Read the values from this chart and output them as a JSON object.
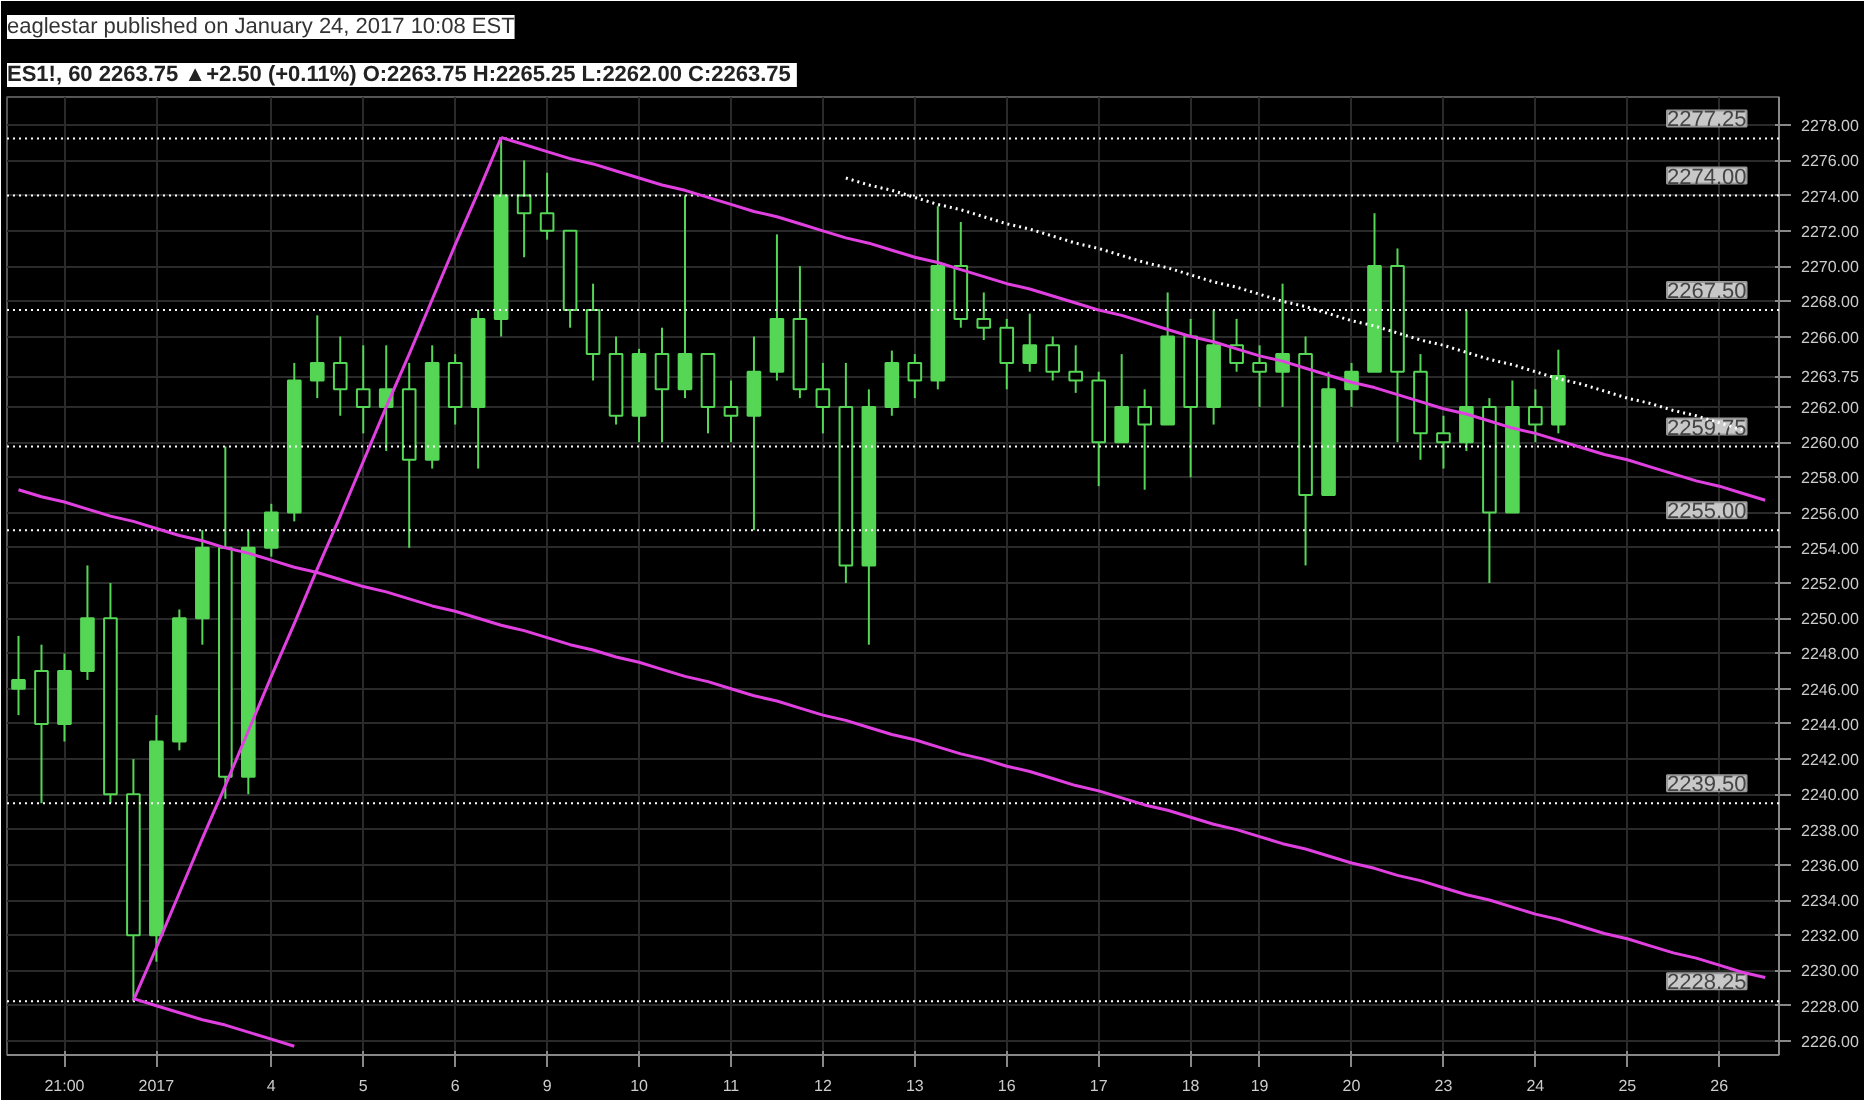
{
  "chart_data": {
    "type": "candlestick",
    "title": "eaglestar published on January 24, 2017 10:08 EST",
    "subtitle": "ES1!, 60  2263.75 ▲+2.50 (+0.11%) O:2263.75 H:2265.25 L:2262.00 C:2263.75",
    "color": "#55d655",
    "categories": [
      null,
      null,
      "21:00",
      null,
      null,
      null,
      "2017",
      null,
      null,
      null,
      null,
      "4",
      null,
      null,
      null,
      "5",
      null,
      null,
      null,
      "6",
      null,
      null,
      null,
      "9",
      null,
      null,
      null,
      "10",
      null,
      null,
      null,
      "11",
      null,
      null,
      null,
      "12",
      null,
      null,
      null,
      "13",
      null,
      null,
      null,
      "16",
      null,
      null,
      null,
      "17",
      null,
      null,
      null,
      "18",
      null,
      null,
      "19",
      null,
      null,
      null,
      "20",
      null,
      null,
      null,
      "23",
      null,
      null,
      null,
      "24",
      null,
      null,
      null,
      "25",
      null,
      null,
      null,
      "26",
      null,
      null
    ],
    "ohlc": [
      [
        2246,
        2249,
        2244.5,
        2246.5
      ],
      [
        2247,
        2248.5,
        2239.5,
        2244
      ],
      [
        2244,
        2248,
        2243,
        2247
      ],
      [
        2247,
        2253,
        2246.5,
        2250
      ],
      [
        2250,
        2252,
        2239.5,
        2240
      ],
      [
        2240,
        2242,
        2228.25,
        2232
      ],
      [
        2232,
        2244.5,
        2230.5,
        2243
      ],
      [
        2243,
        2250.5,
        2242.5,
        2250
      ],
      [
        2250,
        2255,
        2248.5,
        2254
      ],
      [
        2254,
        2259.75,
        2239.75,
        2241
      ],
      [
        2241,
        2255,
        2240,
        2254
      ],
      [
        2254,
        2256.5,
        2253.5,
        2256
      ],
      [
        2256,
        2264.5,
        2255.5,
        2263.5
      ],
      [
        2263.5,
        2267.2,
        2262.5,
        2264.5
      ],
      [
        2264.5,
        2266,
        2261.5,
        2263
      ],
      [
        2263,
        2265.5,
        2260.5,
        2262
      ],
      [
        2262,
        2265.5,
        2259.5,
        2263
      ],
      [
        2263,
        2264.5,
        2254,
        2259
      ],
      [
        2259,
        2265.5,
        2258.5,
        2264.5
      ],
      [
        2264.5,
        2265,
        2261,
        2262
      ],
      [
        2262,
        2267.5,
        2258.5,
        2267
      ],
      [
        2267,
        2277.25,
        2266,
        2274
      ],
      [
        2274,
        2276,
        2270.5,
        2273
      ],
      [
        2273,
        2275.3,
        2271.5,
        2272
      ],
      [
        2272,
        2272,
        2266.5,
        2267.5
      ],
      [
        2267.5,
        2269,
        2263.5,
        2265
      ],
      [
        2265,
        2266,
        2261,
        2261.5
      ],
      [
        2261.5,
        2265.3,
        2260,
        2265
      ],
      [
        2265,
        2266.5,
        2260,
        2263
      ],
      [
        2263,
        2274,
        2262.5,
        2265
      ],
      [
        2265,
        2265,
        2260.5,
        2262
      ],
      [
        2262,
        2263.5,
        2260,
        2261.5
      ],
      [
        2261.5,
        2266,
        2255,
        2264
      ],
      [
        2264,
        2271.8,
        2263.5,
        2267
      ],
      [
        2267,
        2270,
        2262.5,
        2263
      ],
      [
        2263,
        2264.5,
        2260.5,
        2262
      ],
      [
        2262,
        2264.5,
        2252,
        2253
      ],
      [
        2253,
        2263,
        2248.5,
        2262
      ],
      [
        2262,
        2265.2,
        2261.5,
        2264.5
      ],
      [
        2264.5,
        2265,
        2262.5,
        2263.5
      ],
      [
        2263.5,
        2273.4,
        2263,
        2270
      ],
      [
        2270,
        2272.5,
        2266.5,
        2267
      ],
      [
        2267,
        2268.5,
        2265.8,
        2266.5
      ],
      [
        2266.5,
        2267,
        2263,
        2264.5
      ],
      [
        2264.5,
        2267.3,
        2264,
        2265.5
      ],
      [
        2265.5,
        2266,
        2263.5,
        2264
      ],
      [
        2264,
        2265.5,
        2262.8,
        2263.5
      ],
      [
        2263.5,
        2264,
        2257.5,
        2260
      ],
      [
        2260,
        2265,
        2260,
        2262
      ],
      [
        2262,
        2263,
        2257.3,
        2261
      ],
      [
        2261,
        2268.5,
        2261,
        2266
      ],
      [
        2266,
        2267,
        2258,
        2262
      ],
      [
        2262,
        2267.5,
        2261,
        2265.5
      ],
      [
        2265.5,
        2267,
        2264,
        2264.5
      ],
      [
        2264.5,
        2265.5,
        2262,
        2264
      ],
      [
        2264,
        2269,
        2262,
        2265
      ],
      [
        2265,
        2266,
        2253,
        2257
      ],
      [
        2257,
        2264,
        2257,
        2263
      ],
      [
        2263,
        2264.5,
        2262,
        2264
      ],
      [
        2264,
        2273,
        2264,
        2270
      ],
      [
        2270,
        2271,
        2260,
        2264
      ],
      [
        2264,
        2265,
        2259,
        2260.5
      ],
      [
        2260.5,
        2261.5,
        2258.5,
        2260
      ],
      [
        2260,
        2267.5,
        2259.5,
        2262
      ],
      [
        2262,
        2262.5,
        2252,
        2256
      ],
      [
        2256,
        2263.5,
        2256,
        2262
      ],
      [
        2262,
        2263,
        2260,
        2261
      ],
      [
        2261,
        2265.25,
        2260.5,
        2263.75
      ],
      null,
      null,
      null,
      null,
      null,
      null,
      null,
      null,
      null
    ],
    "series": [
      {
        "type": "line",
        "color": "#e040e0",
        "values": [
          null,
          null,
          null,
          null,
          null,
          2228.3,
          2231.3,
          2234.4,
          2237.5,
          2240.5,
          2243.6,
          2246.7,
          2249.7,
          2252.8,
          2255.8,
          2258.9,
          2262.0,
          2265.0,
          2268.1,
          2271.2,
          2274.2,
          2277.3,
          null,
          null,
          null,
          null,
          null,
          null,
          null,
          null,
          null,
          null,
          null,
          null,
          null,
          null,
          null,
          null,
          null,
          null,
          null,
          null,
          null,
          null,
          null,
          null,
          null,
          null,
          null,
          null,
          null,
          null,
          null,
          null,
          null,
          null,
          null,
          null,
          null,
          null,
          null,
          null,
          null,
          null,
          null,
          null,
          null,
          null,
          null,
          null,
          null,
          null,
          null,
          null,
          null,
          null,
          null
        ]
      },
      {
        "type": "line",
        "color": "#e040e0",
        "values": [
          null,
          null,
          null,
          null,
          null,
          null,
          null,
          null,
          null,
          null,
          null,
          null,
          null,
          null,
          null,
          null,
          null,
          null,
          null,
          null,
          null,
          2277.3,
          2276.9,
          2276.5,
          2276.1,
          2275.8,
          2275.4,
          2275.0,
          2274.6,
          2274.3,
          2273.9,
          2273.5,
          2273.1,
          2272.8,
          2272.4,
          2272.0,
          2271.6,
          2271.3,
          2270.9,
          2270.5,
          2270.2,
          2269.8,
          2269.4,
          2269.0,
          2268.7,
          2268.3,
          2267.9,
          2267.5,
          2267.2,
          2266.8,
          2266.4,
          2266.0,
          2265.7,
          2265.3,
          2264.9,
          2264.6,
          2264.2,
          2263.8,
          2263.4,
          2263.1,
          2262.7,
          2262.3,
          2261.9,
          2261.6,
          2261.2,
          2260.8,
          2260.5,
          2260.1,
          2259.7,
          2259.3,
          2259.0,
          2258.6,
          2258.2,
          2257.8,
          2257.5,
          2257.1,
          2256.7
        ]
      },
      {
        "type": "line",
        "color": "#e040e0",
        "values": [
          2257.3,
          2256.9,
          2256.6,
          2256.2,
          2255.8,
          2255.5,
          2255.1,
          2254.7,
          2254.4,
          2254.0,
          2253.7,
          2253.3,
          2252.9,
          2252.6,
          2252.2,
          2251.8,
          2251.5,
          2251.1,
          2250.7,
          2250.4,
          2250.0,
          2249.6,
          2249.3,
          2248.9,
          2248.5,
          2248.2,
          2247.8,
          2247.5,
          2247.1,
          2246.7,
          2246.4,
          2246.0,
          2245.6,
          2245.3,
          2244.9,
          2244.5,
          2244.2,
          2243.8,
          2243.4,
          2243.1,
          2242.7,
          2242.3,
          2242.0,
          2241.6,
          2241.3,
          2240.9,
          2240.5,
          2240.2,
          2239.8,
          2239.4,
          2239.1,
          2238.7,
          2238.3,
          2238.0,
          2237.6,
          2237.2,
          2236.9,
          2236.5,
          2236.1,
          2235.8,
          2235.4,
          2235.1,
          2234.7,
          2234.3,
          2234.0,
          2233.6,
          2233.2,
          2232.9,
          2232.5,
          2232.1,
          2231.8,
          2231.4,
          2231.0,
          2230.7,
          2230.3,
          2229.9,
          2229.6
        ]
      },
      {
        "type": "line",
        "color": "#e040e0",
        "values": [
          null,
          null,
          null,
          null,
          null,
          2228.4,
          2228.0,
          2227.6,
          2227.2,
          2226.9,
          2226.5,
          2226.1,
          2225.7,
          null,
          null,
          null,
          null,
          null,
          null,
          null,
          null,
          null,
          null,
          null,
          null,
          null,
          null,
          null,
          null,
          null,
          null,
          null,
          null,
          null,
          null,
          null,
          null,
          null,
          null,
          null,
          null,
          null,
          null,
          null,
          null,
          null,
          null,
          null,
          null,
          null,
          null,
          null,
          null,
          null,
          null,
          null,
          null,
          null,
          null,
          null,
          null,
          null,
          null,
          null,
          null,
          null,
          null,
          null,
          null,
          null,
          null,
          null,
          null,
          null,
          null,
          null,
          null
        ]
      },
      {
        "type": "line",
        "color": "#ffffff",
        "line_style": "dotted",
        "values": [
          null,
          null,
          null,
          null,
          null,
          null,
          null,
          null,
          null,
          null,
          null,
          null,
          null,
          null,
          null,
          null,
          null,
          null,
          null,
          null,
          null,
          null,
          null,
          null,
          null,
          null,
          null,
          null,
          null,
          null,
          null,
          null,
          null,
          null,
          null,
          null,
          2275.0,
          2274.6,
          2274.3,
          2273.9,
          2273.5,
          2273.2,
          2272.8,
          2272.4,
          2272.1,
          2271.7,
          2271.3,
          2271.0,
          2270.6,
          2270.2,
          2269.9,
          2269.5,
          2269.1,
          2268.8,
          2268.4,
          2268.0,
          2267.7,
          2267.3,
          2266.9,
          2266.6,
          2266.2,
          2265.8,
          2265.5,
          2265.1,
          2264.7,
          2264.4,
          2264.0,
          2263.6,
          2263.3,
          2262.9,
          2262.5,
          2262.2,
          2261.8,
          2261.5,
          2261.1,
          2260.7,
          null
        ]
      }
    ],
    "ref_lines": [
      {
        "axis": "y",
        "value": 2277.25,
        "label": "2277.25",
        "color": "#ffffff",
        "line_style": "dotted"
      },
      {
        "axis": "y",
        "value": 2274.0,
        "label": "2274.00",
        "color": "#ffffff",
        "line_style": "dotted"
      },
      {
        "axis": "y",
        "value": 2267.5,
        "label": "2267.50",
        "color": "#ffffff",
        "line_style": "dotted"
      },
      {
        "axis": "y",
        "value": 2259.75,
        "label": "2259.75",
        "color": "#ffffff",
        "line_style": "dotted"
      },
      {
        "axis": "y",
        "value": 2255.0,
        "label": "2255.00",
        "color": "#ffffff",
        "line_style": "dotted"
      },
      {
        "axis": "y",
        "value": 2239.5,
        "label": "2239.50",
        "color": "#ffffff",
        "line_style": "dotted"
      },
      {
        "axis": "y",
        "value": 2228.25,
        "label": "2228.25",
        "color": "#ffffff",
        "line_style": "dotted"
      }
    ],
    "ylim": [
      2225.2,
      2279.6
    ],
    "yticks": [
      {
        "value": 2226,
        "label": "2226.00"
      },
      {
        "value": 2228,
        "label": "2228.00"
      },
      {
        "value": 2230,
        "label": "2230.00"
      },
      {
        "value": 2232,
        "label": "2232.00"
      },
      {
        "value": 2234,
        "label": "2234.00"
      },
      {
        "value": 2236,
        "label": "2236.00"
      },
      {
        "value": 2238,
        "label": "2238.00"
      },
      {
        "value": 2240,
        "label": "2240.00"
      },
      {
        "value": 2242,
        "label": "2242.00"
      },
      {
        "value": 2244,
        "label": "2244.00"
      },
      {
        "value": 2246,
        "label": "2246.00"
      },
      {
        "value": 2248,
        "label": "2248.00"
      },
      {
        "value": 2250,
        "label": "2250.00"
      },
      {
        "value": 2252,
        "label": "2252.00"
      },
      {
        "value": 2254,
        "label": "2254.00"
      },
      {
        "value": 2256,
        "label": "2256.00"
      },
      {
        "value": 2258,
        "label": "2258.00"
      },
      {
        "value": 2260,
        "label": "2260.00"
      },
      {
        "value": 2262,
        "label": "2262.00"
      },
      {
        "value": 2263.75,
        "label": "2263.75"
      },
      {
        "value": 2266,
        "label": "2266.00"
      },
      {
        "value": 2268,
        "label": "2268.00"
      },
      {
        "value": 2270,
        "label": "2270.00"
      },
      {
        "value": 2272,
        "label": "2272.00"
      },
      {
        "value": 2274,
        "label": "2274.00"
      },
      {
        "value": 2276,
        "label": "2276.00"
      },
      {
        "value": 2278,
        "label": "2278.00"
      }
    ],
    "grid": true
  }
}
